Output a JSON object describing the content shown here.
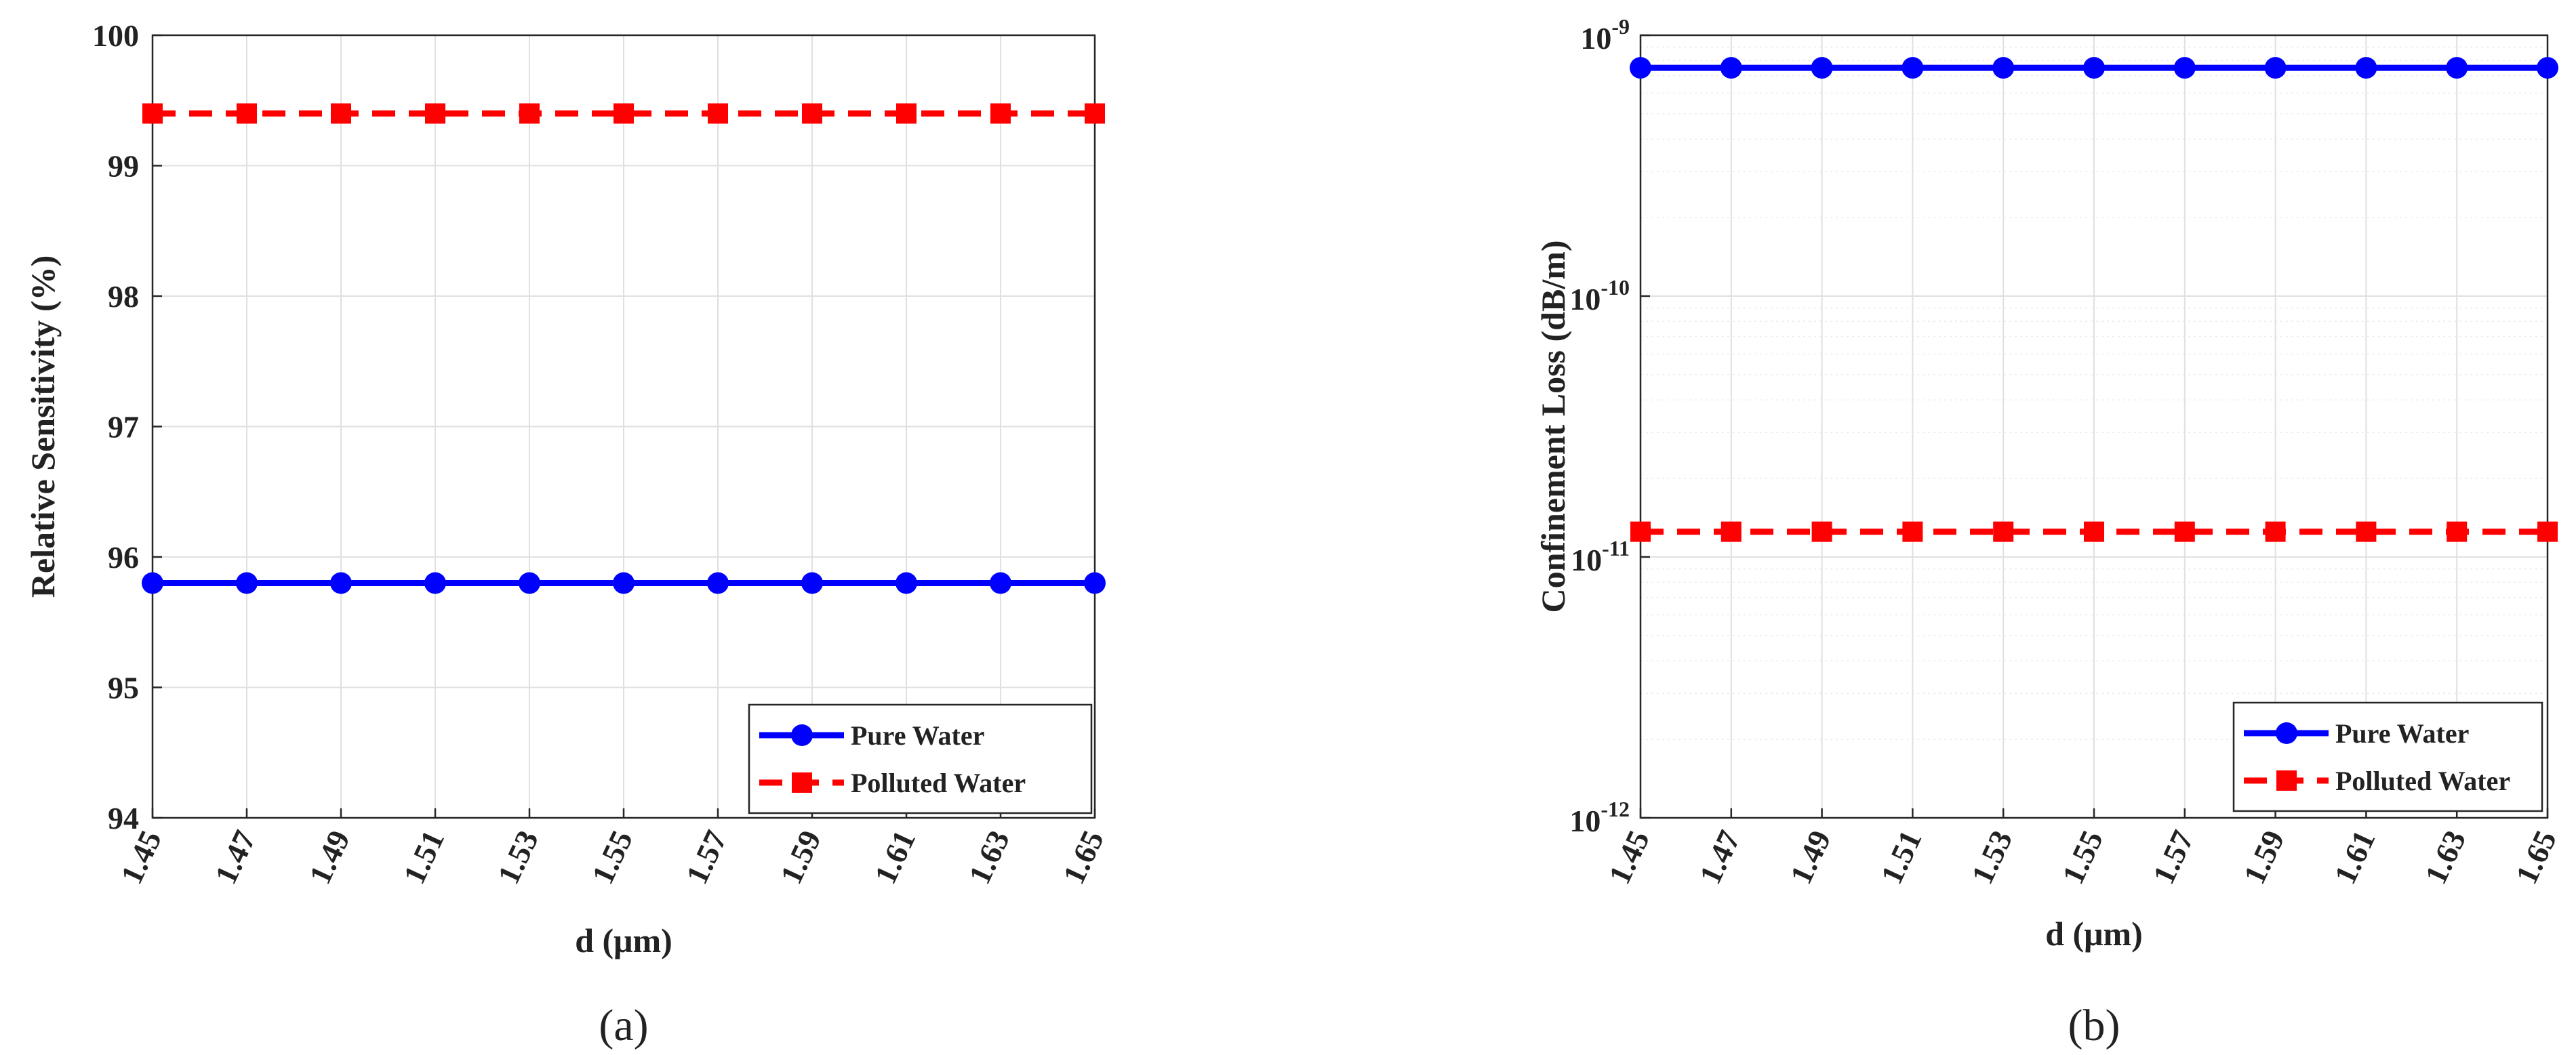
{
  "chart_data": [
    {
      "type": "line",
      "panel_label": "(a)",
      "title": "",
      "xlabel": "d (μm)",
      "ylabel": "Relative Sensitivity (%)",
      "x": [
        1.45,
        1.47,
        1.49,
        1.51,
        1.53,
        1.55,
        1.57,
        1.59,
        1.61,
        1.63,
        1.65
      ],
      "x_tick_labels": [
        "1.45",
        "1.47",
        "1.49",
        "1.51",
        "1.53",
        "1.55",
        "1.57",
        "1.59",
        "1.61",
        "1.63",
        "1.65"
      ],
      "xlim": [
        1.45,
        1.65
      ],
      "ylim": [
        94,
        100
      ],
      "y_scale": "linear",
      "y_ticks": [
        94,
        95,
        96,
        97,
        98,
        99,
        100
      ],
      "y_tick_labels": [
        "94",
        "95",
        "96",
        "97",
        "98",
        "99",
        "100"
      ],
      "grid": true,
      "legend_position": "bottom-right",
      "series": [
        {
          "name": "Pure Water",
          "color": "#0000ff",
          "style": "solid",
          "marker": "circle",
          "values": [
            95.8,
            95.8,
            95.8,
            95.8,
            95.8,
            95.8,
            95.8,
            95.8,
            95.8,
            95.8,
            95.8
          ]
        },
        {
          "name": "Polluted Water",
          "color": "#ff0000",
          "style": "dashed",
          "marker": "square",
          "values": [
            99.4,
            99.4,
            99.4,
            99.4,
            99.4,
            99.4,
            99.4,
            99.4,
            99.4,
            99.4,
            99.4
          ]
        }
      ]
    },
    {
      "type": "line",
      "panel_label": "(b)",
      "title": "",
      "xlabel": "d (μm)",
      "ylabel": "Confinement Loss (dB/m)",
      "x": [
        1.45,
        1.47,
        1.49,
        1.51,
        1.53,
        1.55,
        1.57,
        1.59,
        1.61,
        1.63,
        1.65
      ],
      "x_tick_labels": [
        "1.45",
        "1.47",
        "1.49",
        "1.51",
        "1.53",
        "1.55",
        "1.57",
        "1.59",
        "1.61",
        "1.63",
        "1.65"
      ],
      "xlim": [
        1.45,
        1.65
      ],
      "ylim": [
        1e-12,
        1e-09
      ],
      "y_scale": "log",
      "y_ticks": [
        1e-12,
        1e-11,
        1e-10,
        1e-09
      ],
      "y_tick_bases": [
        "10",
        "10",
        "10",
        "10"
      ],
      "y_tick_exponents": [
        "-12",
        "-11",
        "-10",
        "-9"
      ],
      "grid": true,
      "legend_position": "bottom-right",
      "series": [
        {
          "name": "Pure Water",
          "color": "#0000ff",
          "style": "solid",
          "marker": "circle",
          "values": [
            7.5e-10,
            7.5e-10,
            7.5e-10,
            7.5e-10,
            7.5e-10,
            7.5e-10,
            7.5e-10,
            7.5e-10,
            7.5e-10,
            7.5e-10,
            7.5e-10
          ]
        },
        {
          "name": "Polluted Water",
          "color": "#ff0000",
          "style": "dashed",
          "marker": "square",
          "values": [
            1.25e-11,
            1.25e-11,
            1.25e-11,
            1.25e-11,
            1.25e-11,
            1.25e-11,
            1.25e-11,
            1.25e-11,
            1.25e-11,
            1.25e-11,
            1.25e-11
          ]
        }
      ]
    }
  ]
}
